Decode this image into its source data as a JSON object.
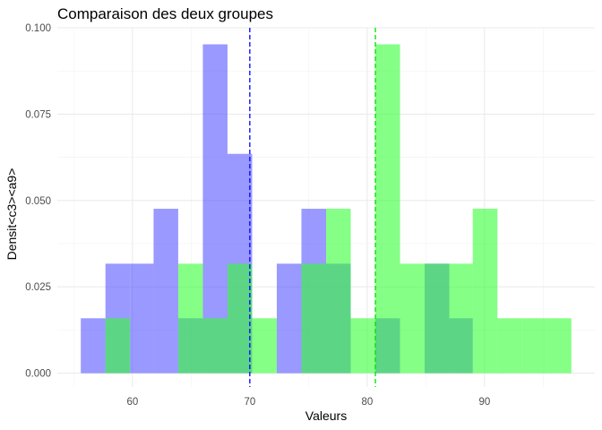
{
  "chart_data": {
    "type": "histogram",
    "title": "Comparaison des deux groupes",
    "xlabel": "Valeurs",
    "ylabel": "Densit<c3><a9>",
    "xlim": [
      53.6,
      99.4
    ],
    "ylim": [
      -0.004,
      0.1
    ],
    "x_ticks": [
      60,
      70,
      80,
      90
    ],
    "y_ticks": [
      0.0,
      0.025,
      0.05,
      0.075,
      0.1
    ],
    "y_tick_labels": [
      "0.000",
      "0.025",
      "0.050",
      "0.075",
      "0.100"
    ],
    "bin_edges": [
      55.6,
      57.7,
      59.8,
      61.8,
      63.9,
      66.0,
      68.1,
      70.2,
      72.3,
      74.4,
      76.5,
      78.6,
      80.7,
      82.8,
      84.9,
      87.0,
      89.0,
      91.1,
      93.2,
      95.3,
      97.4
    ],
    "grid": true,
    "series": [
      {
        "color": "#5555ff",
        "values": [
          0.0159,
          0.0317,
          0.0317,
          0.0476,
          0.0159,
          0.0952,
          0.0635,
          0,
          0.0317,
          0.0476,
          0.0317,
          0,
          0.0159,
          0,
          0.0317,
          0.0159,
          0,
          0,
          0,
          0
        ],
        "mean": 70.0
      },
      {
        "color": "#33ff33",
        "values": [
          0,
          0.0159,
          0,
          0,
          0.0317,
          0.0159,
          0.0317,
          0.0159,
          0,
          0.0317,
          0.0476,
          0.0159,
          0.0952,
          0.0317,
          0.0317,
          0.0317,
          0.0476,
          0.0159,
          0.0159,
          0.0159
        ],
        "mean": 80.7
      }
    ]
  }
}
